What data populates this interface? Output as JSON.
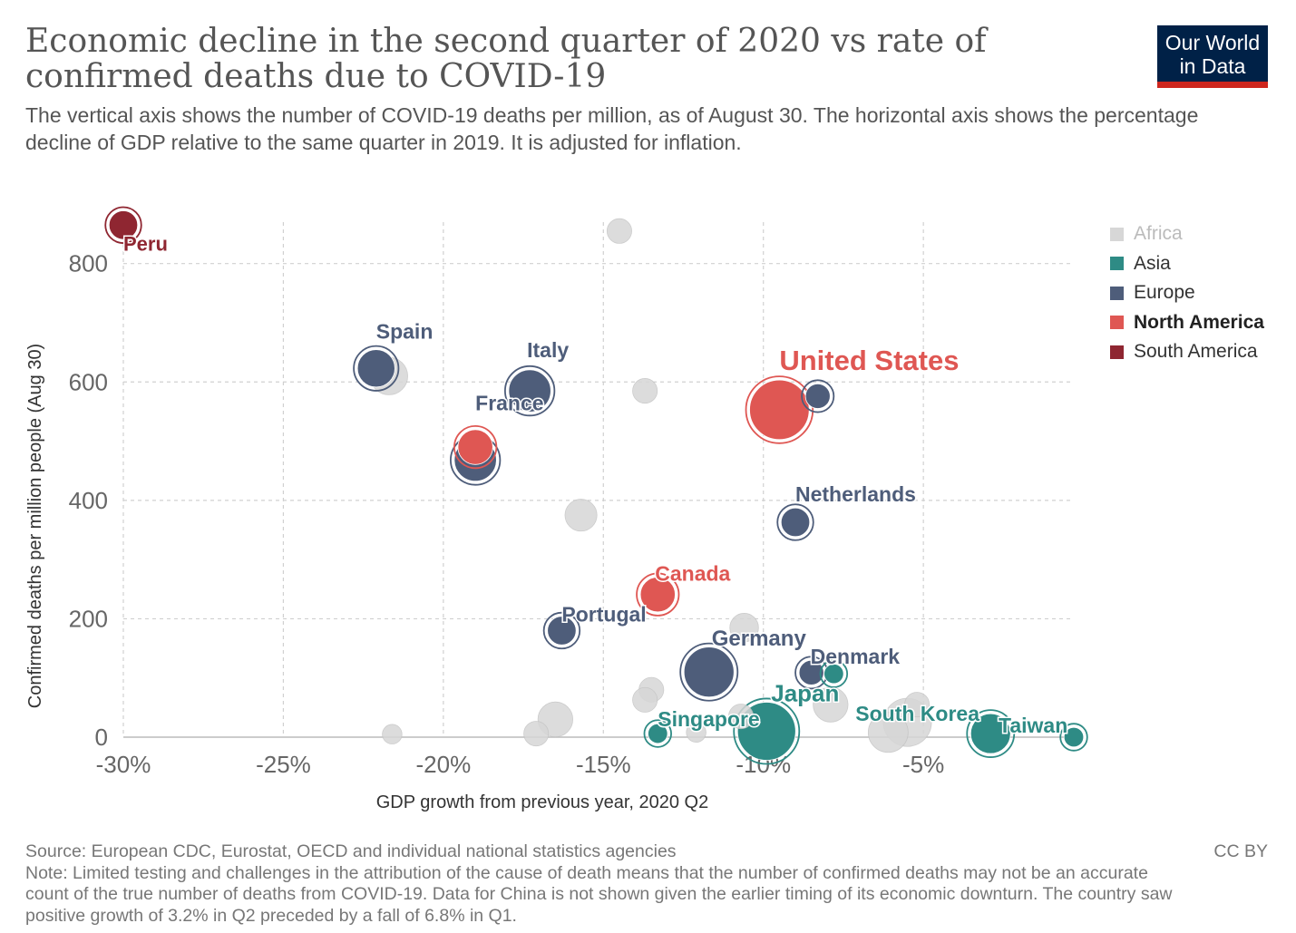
{
  "header": {
    "title": "Economic decline in the second quarter of 2020 vs rate of confirmed deaths due to COVID-19",
    "subtitle": "The vertical axis shows the number of COVID-19 deaths per million, as of August 30. The horizontal axis shows the percentage decline of GDP relative to the same quarter in 2019. It is adjusted for inflation.",
    "logo_line1": "Our World",
    "logo_line2": "in Data"
  },
  "footer": {
    "source": "Source: European CDC, Eurostat, OECD and individual national statistics agencies",
    "note": "Note: Limited testing and challenges in the attribution of the cause of death means that the number of confirmed deaths may not be an accurate count of the true number of deaths from COVID-19. Data for China is not shown given the earlier timing of its economic downturn. The country saw positive growth of 3.2% in Q2 preceded by a fall of 6.8% in Q1.",
    "license": "CC BY"
  },
  "colors": {
    "Africa": "#d7d7d7",
    "Asia": "#2e8b85",
    "Europe": "#4e5d7a",
    "North America": "#df5753",
    "South America": "#8f2631",
    "grid": "#d0d0d0",
    "axis": "#bbbbbb"
  },
  "legend": [
    {
      "label": "Africa",
      "key": "Africa",
      "state": "dim"
    },
    {
      "label": "Asia",
      "key": "Asia",
      "state": "normal"
    },
    {
      "label": "Europe",
      "key": "Europe",
      "state": "normal"
    },
    {
      "label": "North America",
      "key": "North America",
      "state": "bold"
    },
    {
      "label": "South America",
      "key": "South America",
      "state": "normal"
    }
  ],
  "chart_data": {
    "type": "scatter",
    "title": "Economic decline in the second quarter of 2020 vs rate of confirmed deaths due to COVID-19",
    "xlabel": "GDP growth from previous year, 2020 Q2",
    "ylabel": "Confirmed deaths per million people (Aug 30)",
    "xlim": [
      -30,
      -0.3
    ],
    "ylim": [
      0,
      870
    ],
    "x_ticks": [
      -30,
      -25,
      -20,
      -15,
      -10,
      -5
    ],
    "x_tick_labels": [
      "-30%",
      "-25%",
      "-20%",
      "-15%",
      "-10%",
      "-5%"
    ],
    "y_ticks": [
      0,
      200,
      400,
      600,
      800
    ],
    "y_tick_labels": [
      "0",
      "200",
      "400",
      "600",
      "800"
    ],
    "grid": true,
    "legend_position": "right",
    "points": [
      {
        "name": "",
        "group": "Africa",
        "x": -14.5,
        "y": 855,
        "size": 2
      },
      {
        "name": "",
        "group": "Africa",
        "x": -21.7,
        "y": 610,
        "size": 6
      },
      {
        "name": "",
        "group": "Africa",
        "x": -13.7,
        "y": 585,
        "size": 2
      },
      {
        "name": "",
        "group": "Africa",
        "x": -15.7,
        "y": 375,
        "size": 4
      },
      {
        "name": "",
        "group": "Africa",
        "x": -10.6,
        "y": 185,
        "size": 3
      },
      {
        "name": "",
        "group": "Africa",
        "x": -13.5,
        "y": 80,
        "size": 2
      },
      {
        "name": "",
        "group": "Africa",
        "x": -13.7,
        "y": 63,
        "size": 2
      },
      {
        "name": "",
        "group": "Africa",
        "x": -16.5,
        "y": 30,
        "size": 5
      },
      {
        "name": "",
        "group": "Africa",
        "x": -17.1,
        "y": 6,
        "size": 2
      },
      {
        "name": "",
        "group": "Africa",
        "x": -21.6,
        "y": 5,
        "size": 1
      },
      {
        "name": "",
        "group": "Africa",
        "x": -10.7,
        "y": 35,
        "size": 2
      },
      {
        "name": "",
        "group": "Africa",
        "x": -12.1,
        "y": 8,
        "size": 1
      },
      {
        "name": "",
        "group": "Africa",
        "x": -7.9,
        "y": 55,
        "size": 5
      },
      {
        "name": "",
        "group": "Africa",
        "x": -6.1,
        "y": 8,
        "size": 7
      },
      {
        "name": "",
        "group": "Africa",
        "x": -5.5,
        "y": 25,
        "size": 11
      },
      {
        "name": "",
        "group": "Africa",
        "x": -5.2,
        "y": 55,
        "size": 2
      },
      {
        "name": "Peru",
        "group": "South America",
        "x": -30.0,
        "y": 865,
        "size": 3
      },
      {
        "name": "Spain",
        "group": "Europe",
        "x": -22.1,
        "y": 623,
        "size": 6
      },
      {
        "name": "Italy",
        "group": "Europe",
        "x": -17.3,
        "y": 585,
        "size": 8
      },
      {
        "name": "France",
        "group": "Europe",
        "x": -19.0,
        "y": 468,
        "size": 8
      },
      {
        "name": "",
        "group": "North America",
        "x": -19.0,
        "y": 490,
        "size": 5
      },
      {
        "name": "United States",
        "group": "North America",
        "x": -9.5,
        "y": 553,
        "size": 18
      },
      {
        "name": "",
        "group": "Europe",
        "x": -8.3,
        "y": 576,
        "size": 2
      },
      {
        "name": "Netherlands",
        "group": "Europe",
        "x": -9.0,
        "y": 363,
        "size": 3
      },
      {
        "name": "Canada",
        "group": "North America",
        "x": -13.3,
        "y": 241,
        "size": 5
      },
      {
        "name": "Portugal",
        "group": "Europe",
        "x": -16.3,
        "y": 180,
        "size": 3
      },
      {
        "name": "Germany",
        "group": "Europe",
        "x": -11.7,
        "y": 110,
        "size": 12
      },
      {
        "name": "Denmark",
        "group": "Europe",
        "x": -8.5,
        "y": 109,
        "size": 2
      },
      {
        "name": "",
        "group": "Asia",
        "x": -7.8,
        "y": 107,
        "size": 1
      },
      {
        "name": "Singapore",
        "group": "Asia",
        "x": -13.3,
        "y": 6,
        "size": 1
      },
      {
        "name": "Japan",
        "group": "Asia",
        "x": -9.9,
        "y": 10,
        "size": 17
      },
      {
        "name": "South Korea",
        "group": "Asia",
        "x": -2.9,
        "y": 6,
        "size": 7
      },
      {
        "name": "Taiwan",
        "group": "Asia",
        "x": -0.3,
        "y": 0,
        "size": 1
      }
    ]
  }
}
